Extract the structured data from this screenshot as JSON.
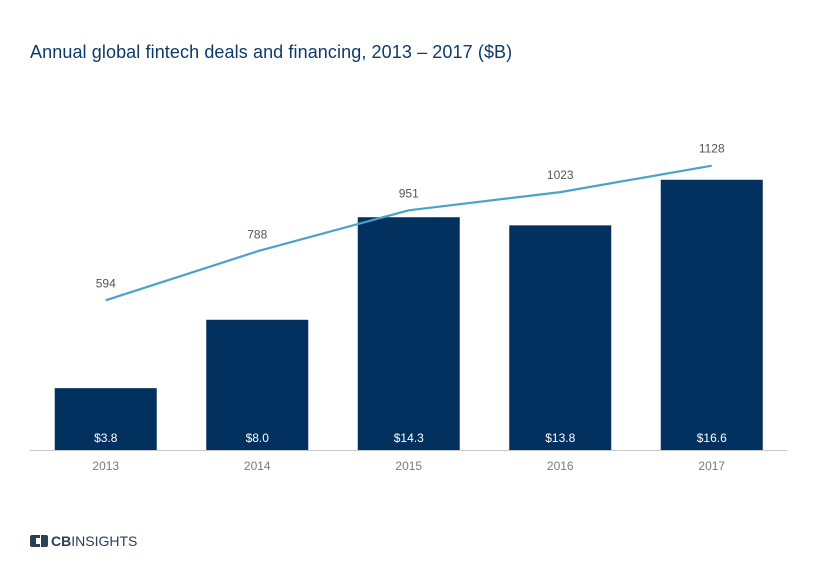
{
  "title": "Annual global fintech deals and financing, 2013 – 2017 ($B)",
  "brand": {
    "bold": "CB",
    "rest": "INSIGHTS"
  },
  "colors": {
    "bar": "#02315f",
    "line": "#4aa3c8",
    "axis": "#c8c8c8",
    "tick": "#7a7a7a",
    "label": "#555555"
  },
  "chart_data": {
    "type": "bar",
    "title": "Annual global fintech deals and financing, 2013 – 2017 ($B)",
    "categories": [
      "2013",
      "2014",
      "2015",
      "2016",
      "2017"
    ],
    "series": [
      {
        "name": "",
        "type": "bar",
        "values": [
          3.8,
          8.0,
          14.3,
          13.8,
          16.6
        ],
        "labels": [
          "$3.8",
          "$8.0",
          "$14.3",
          "$13.8",
          "$16.6"
        ]
      },
      {
        "name": "",
        "type": "line",
        "values": [
          594,
          788,
          951,
          1023,
          1128
        ],
        "labels": [
          "594",
          "788",
          "951",
          "1023",
          "1128"
        ]
      }
    ],
    "bar_ylim": [
      0,
      18.0
    ],
    "line_ylim": [
      0,
      1210
    ],
    "grid": false,
    "legend": "none"
  }
}
